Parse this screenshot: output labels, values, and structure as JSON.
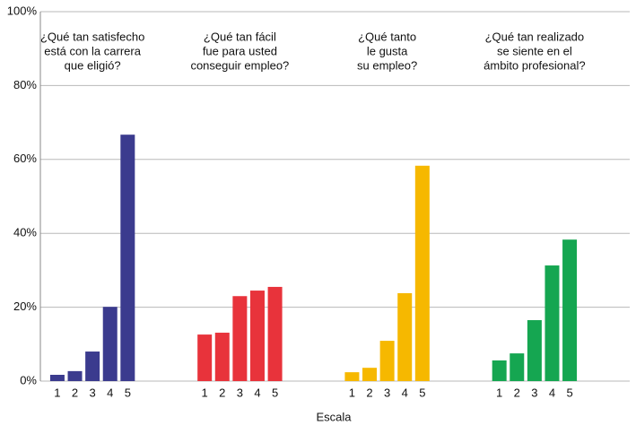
{
  "chart_data": {
    "type": "bar",
    "x_label": "Escala",
    "ylim": [
      0,
      100
    ],
    "yticks": [
      {
        "value": 0,
        "label": "0%"
      },
      {
        "value": 20,
        "label": "20%"
      },
      {
        "value": 40,
        "label": "40%"
      },
      {
        "value": 60,
        "label": "60%"
      },
      {
        "value": 80,
        "label": "80%"
      },
      {
        "value": 100,
        "label": "100%"
      }
    ],
    "grid": true,
    "groups": [
      {
        "title": [
          "¿Qué tan satisfecho",
          "está con la carrera",
          "que eligió?"
        ],
        "color": "#3b3b8e",
        "categories": [
          "1",
          "2",
          "3",
          "4",
          "5"
        ],
        "values": [
          1.7,
          2.7,
          8,
          20.1,
          66.7
        ]
      },
      {
        "title": [
          "¿Qué tan fácil",
          "fue para usted",
          "conseguir empleo?"
        ],
        "color": "#e8333b",
        "categories": [
          "1",
          "2",
          "3",
          "4",
          "5"
        ],
        "values": [
          12.6,
          13.1,
          23,
          24.5,
          25.5
        ]
      },
      {
        "title": [
          "¿Qué tanto",
          "le gusta",
          "su empleo?"
        ],
        "color": "#f6b800",
        "categories": [
          "1",
          "2",
          "3",
          "4",
          "5"
        ],
        "values": [
          2.4,
          3.6,
          10.9,
          23.8,
          58.3
        ]
      },
      {
        "title": [
          "¿Qué tan realizado",
          "se siente en el",
          "ámbito profesional?"
        ],
        "color": "#15a651",
        "categories": [
          "1",
          "2",
          "3",
          "4",
          "5"
        ],
        "values": [
          5.6,
          7.5,
          16.5,
          31.3,
          38.3
        ]
      }
    ]
  }
}
